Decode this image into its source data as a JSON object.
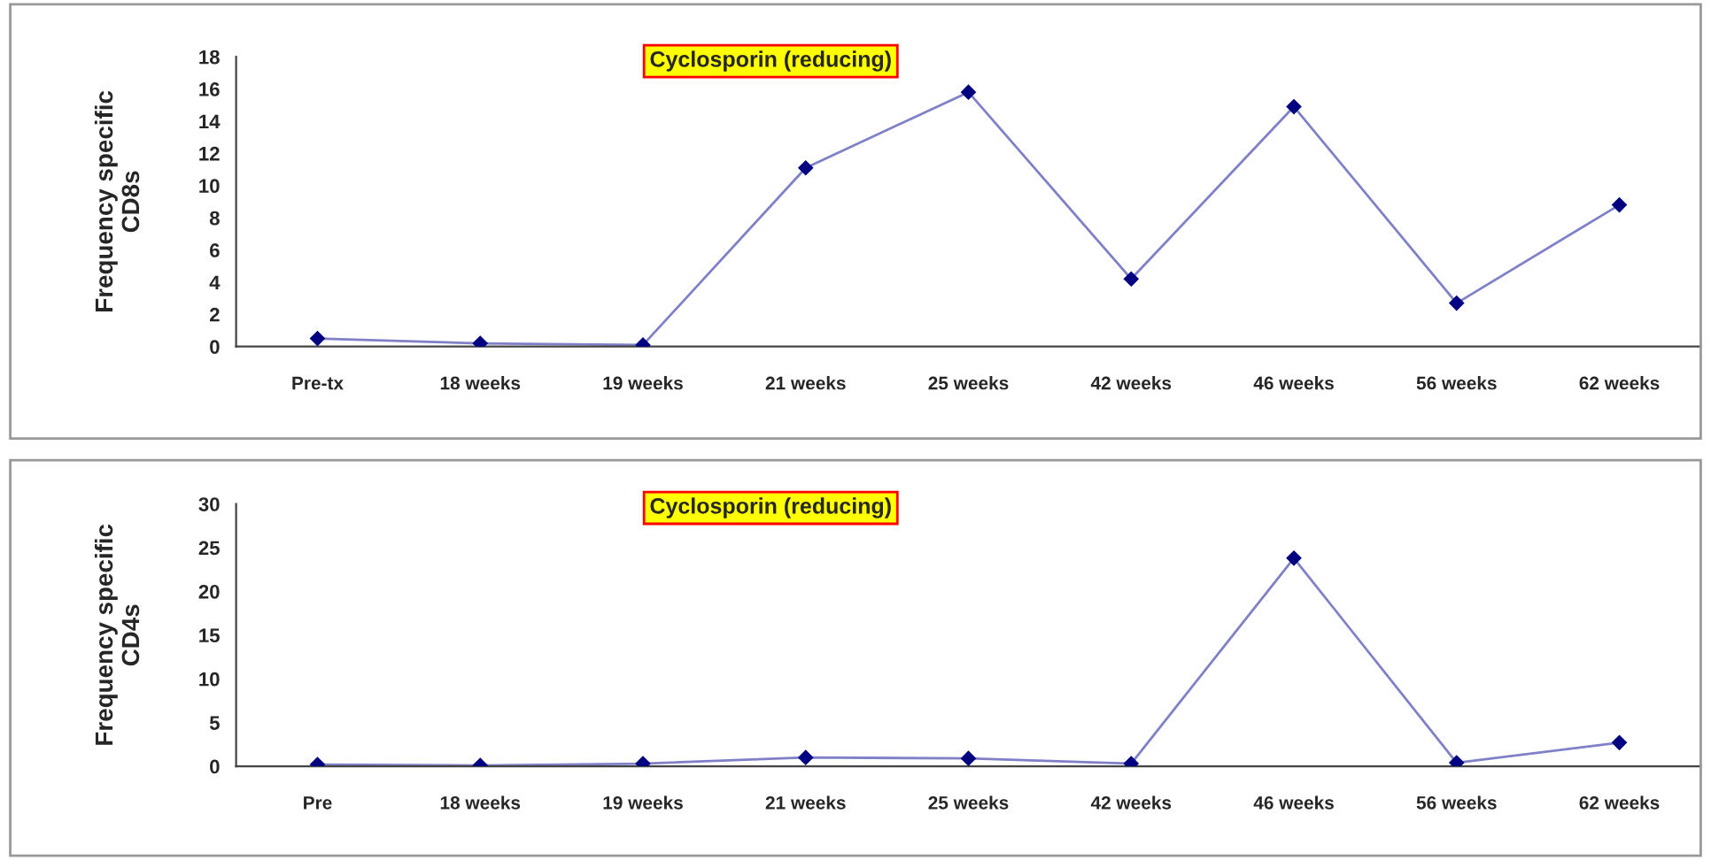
{
  "chart_data": [
    {
      "type": "line",
      "ylabel": "Frequency specific\nCD8s",
      "categories": [
        "Pre-tx",
        "18 weeks",
        "19 weeks",
        "21 weeks",
        "25 weeks",
        "42 weeks",
        "46 weeks",
        "56 weeks",
        "62 weeks"
      ],
      "series": [
        {
          "color": "#8080c8",
          "values": [
            0.5,
            0.2,
            0.1,
            11.1,
            15.8,
            4.2,
            14.9,
            2.7,
            8.8
          ]
        }
      ],
      "ylim": [
        0,
        18
      ],
      "yticks": [
        0,
        2,
        4,
        6,
        8,
        10,
        12,
        14,
        16,
        18
      ],
      "grid": false,
      "legend": false,
      "marker": "diamond",
      "line_style": "solid",
      "annotations": [
        "Cyclosporin (reducing)"
      ]
    },
    {
      "type": "line",
      "ylabel": "Frequency specific\nCD4s",
      "categories": [
        "Pre",
        "18 weeks",
        "19 weeks",
        "21 weeks",
        "25 weeks",
        "42 weeks",
        "46 weeks",
        "56 weeks",
        "62 weeks"
      ],
      "series": [
        {
          "color": "#8080c8",
          "values": [
            0.2,
            0.1,
            0.3,
            1.0,
            0.9,
            0.3,
            23.8,
            0.4,
            2.7
          ]
        }
      ],
      "ylim": [
        0,
        30
      ],
      "yticks": [
        0,
        5,
        10,
        15,
        20,
        25,
        30
      ],
      "grid": false,
      "legend": false,
      "marker": "diamond",
      "line_style": "solid",
      "annotations": [
        "Cyclosporin (reducing)"
      ]
    }
  ]
}
